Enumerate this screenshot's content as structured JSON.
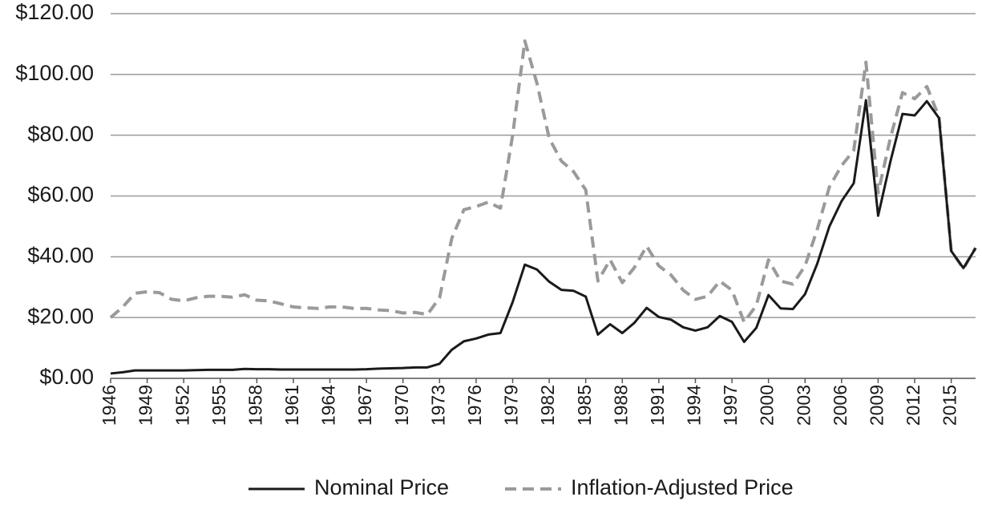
{
  "chart_data": {
    "type": "line",
    "x": [
      1946,
      1947,
      1948,
      1949,
      1950,
      1951,
      1952,
      1953,
      1954,
      1955,
      1956,
      1957,
      1958,
      1959,
      1960,
      1961,
      1962,
      1963,
      1964,
      1965,
      1966,
      1967,
      1968,
      1969,
      1970,
      1971,
      1972,
      1973,
      1974,
      1975,
      1976,
      1977,
      1978,
      1979,
      1980,
      1981,
      1982,
      1983,
      1984,
      1985,
      1986,
      1987,
      1988,
      1989,
      1990,
      1991,
      1992,
      1993,
      1994,
      1995,
      1996,
      1997,
      1998,
      1999,
      2000,
      2001,
      2002,
      2003,
      2004,
      2005,
      2006,
      2007,
      2008,
      2009,
      2010,
      2011,
      2012,
      2013,
      2014,
      2015,
      2016,
      2017
    ],
    "series": [
      {
        "name": "Nominal Price",
        "color": "#1a1a1a",
        "dash": false,
        "values": [
          1.6,
          2.0,
          2.6,
          2.6,
          2.6,
          2.6,
          2.6,
          2.7,
          2.8,
          2.8,
          2.8,
          3.1,
          3.0,
          3.0,
          2.9,
          2.9,
          2.9,
          2.9,
          2.9,
          2.9,
          2.9,
          3.0,
          3.2,
          3.3,
          3.4,
          3.6,
          3.6,
          4.8,
          9.4,
          12.2,
          13.1,
          14.4,
          14.9,
          25.1,
          37.4,
          35.8,
          31.8,
          29.1,
          28.8,
          26.9,
          14.4,
          17.8,
          14.9,
          18.3,
          23.2,
          20.2,
          19.3,
          16.8,
          15.7,
          16.8,
          20.5,
          18.6,
          12.0,
          16.6,
          27.4,
          23.0,
          22.8,
          27.7,
          37.7,
          50.0,
          58.3,
          64.2,
          91.5,
          53.5,
          71.2,
          87.0,
          86.5,
          91.2,
          85.6,
          41.9,
          36.3,
          42.8
        ]
      },
      {
        "name": "Inflation-Adjusted Price",
        "color": "#9a9a9a",
        "dash": true,
        "values": [
          20,
          23.5,
          28,
          28.5,
          28.2,
          26,
          25.5,
          26.5,
          27,
          27,
          26.7,
          27.5,
          25.7,
          25.5,
          24.5,
          23.5,
          23.2,
          23,
          23.5,
          23.5,
          23,
          23,
          22.5,
          22.3,
          21.5,
          21.7,
          21,
          26.5,
          46,
          55.5,
          56.5,
          58,
          56,
          80,
          111,
          97,
          79,
          71.5,
          68,
          62,
          32,
          39,
          31.5,
          36.5,
          43.5,
          37,
          34,
          29,
          26,
          27,
          32,
          29,
          18.5,
          24,
          39,
          32,
          31,
          37,
          49,
          63,
          70,
          75,
          104,
          61,
          79,
          94,
          92,
          96,
          86,
          42,
          36,
          43
        ]
      }
    ],
    "xlim": [
      1946,
      2017
    ],
    "xticks": [
      1946,
      1949,
      1952,
      1955,
      1958,
      1961,
      1964,
      1967,
      1970,
      1973,
      1976,
      1979,
      1982,
      1985,
      1988,
      1991,
      1994,
      1997,
      2000,
      2003,
      2006,
      2009,
      2012,
      2015
    ],
    "ylim": [
      0,
      120
    ],
    "yticks": [
      {
        "value": 0,
        "label": "$0.00"
      },
      {
        "value": 20,
        "label": "$20.00"
      },
      {
        "value": 40,
        "label": "$40.00"
      },
      {
        "value": 60,
        "label": "$60.00"
      },
      {
        "value": 80,
        "label": "$80.00"
      },
      {
        "value": 100,
        "label": "$100.00"
      },
      {
        "value": 120,
        "label": "$120.00"
      }
    ],
    "grid": true,
    "legend": "bottom"
  }
}
